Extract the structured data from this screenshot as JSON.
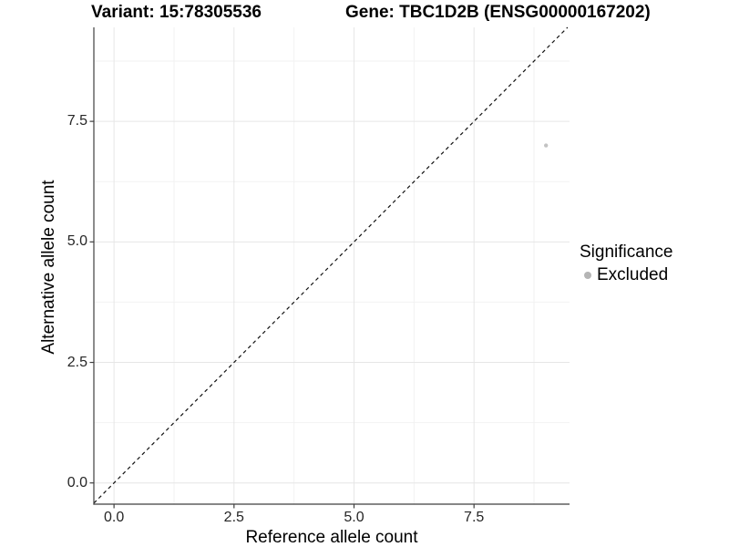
{
  "chart_data": {
    "type": "scatter",
    "title_left": "Variant: 15:78305536",
    "title_right": "Gene: TBC1D2B (ENSG00000167202)",
    "xlabel": "Reference allele count",
    "ylabel": "Alternative allele count",
    "x_ticks": [
      0,
      2.5,
      5,
      7.5
    ],
    "y_ticks": [
      0,
      2.5,
      5,
      7.5
    ],
    "x_tick_labels": [
      "0.0",
      "2.5",
      "5.0",
      "7.5"
    ],
    "y_tick_labels": [
      "0.0",
      "2.5",
      "5.0",
      "7.5"
    ],
    "x_minor_ticks": [
      1.25,
      3.75,
      6.25,
      8.75
    ],
    "y_minor_ticks": [
      1.25,
      3.75,
      6.25,
      8.75
    ],
    "xlim": [
      -0.42,
      9.49
    ],
    "ylim": [
      -0.44,
      9.45
    ],
    "grid": "major+minor",
    "series": [
      {
        "name": "Excluded",
        "color": "#c3c3c3",
        "point_radius": 2.2,
        "points": [
          [
            9,
            7
          ]
        ]
      }
    ],
    "reference_line": {
      "type": "identity y=x",
      "style": "dashed",
      "color": "#111111"
    },
    "legend": {
      "title": "Significance",
      "position": "right",
      "items": [
        {
          "label": "Excluded",
          "color": "#b5b5b5"
        }
      ]
    },
    "colors": {
      "background": "#ffffff",
      "grid_major": "#e6e6e6",
      "grid_minor": "#f2f2f2",
      "axis_line": "#3f3f3f",
      "tick_text": "#262626"
    }
  }
}
